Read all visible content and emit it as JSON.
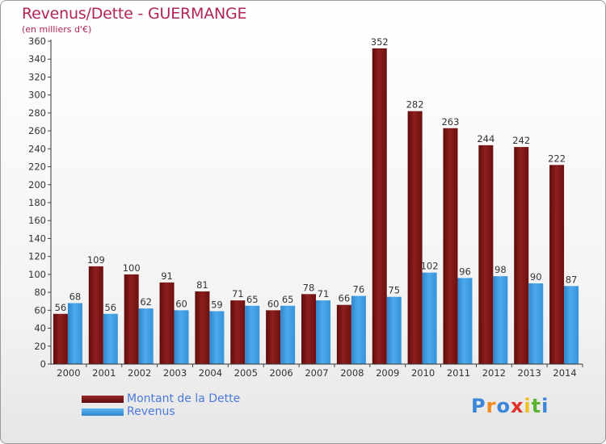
{
  "title": "Revenus/Dette - GUERMANGE",
  "unit_label": "(en milliers d'€)",
  "logo_text": "Proxiti",
  "colors": {
    "title": "#b0245a",
    "debt": "#8b1a1a",
    "revenue": "#3d9be0",
    "legend_text": "#4d7ad8"
  },
  "chart_data": {
    "type": "bar",
    "title": "Revenus/Dette - GUERMANGE",
    "ylabel": "(en milliers d'€)",
    "xlabel": "",
    "ylim": [
      0,
      360
    ],
    "ytick_step": 20,
    "grid": false,
    "legend_position": "bottom-left",
    "categories": [
      "2000",
      "2001",
      "2002",
      "2003",
      "2004",
      "2005",
      "2006",
      "2007",
      "2008",
      "2009",
      "2010",
      "2011",
      "2012",
      "2013",
      "2014"
    ],
    "series": [
      {
        "name": "Montant de la Dette",
        "color": "#8b1a1a",
        "values": [
          56,
          109,
          100,
          91,
          81,
          71,
          60,
          78,
          66,
          352,
          282,
          263,
          244,
          242,
          222
        ]
      },
      {
        "name": "Revenus",
        "color": "#3d9be0",
        "values": [
          68,
          56,
          62,
          60,
          59,
          65,
          65,
          71,
          76,
          75,
          102,
          96,
          98,
          90,
          87
        ]
      }
    ]
  }
}
